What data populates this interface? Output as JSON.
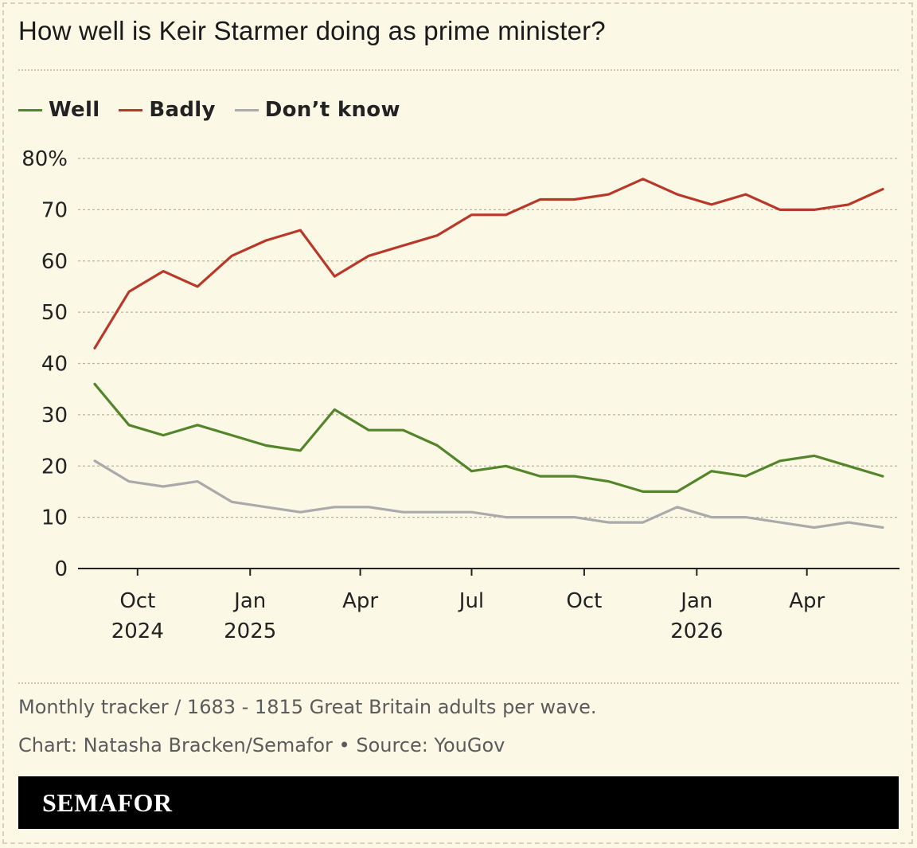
{
  "title": "How well is Keir Starmer doing as prime minister?",
  "legend": [
    {
      "label": "Well",
      "color": "#55852b"
    },
    {
      "label": "Badly",
      "color": "#b8392a"
    },
    {
      "label": "Don’t know",
      "color": "#aaaaaa"
    }
  ],
  "note": "Monthly tracker / 1683 - 1815 Great Britain adults per wave.",
  "credit": "Chart: Natasha Bracken/Semafor • Source: YouGov",
  "brand": "SEMAFOR",
  "chart_data": {
    "type": "line",
    "x_dates": [
      "2024-08-27",
      "2024-09-24",
      "2024-10-22",
      "2024-11-19",
      "2024-12-17",
      "2025-01-14",
      "2025-02-11",
      "2025-03-11",
      "2025-04-08",
      "2025-05-06",
      "2025-06-03",
      "2025-07-01",
      "2025-07-29",
      "2025-08-26",
      "2025-09-23",
      "2025-10-21",
      "2025-11-18",
      "2025-12-16",
      "2026-01-13",
      "2026-02-10",
      "2026-03-10",
      "2026-04-07",
      "2026-05-05",
      "2026-06-02"
    ],
    "series": [
      {
        "name": "Badly",
        "color": "#b8392a",
        "values": [
          43,
          54,
          58,
          55,
          61,
          64,
          66,
          57,
          61,
          63,
          65,
          69,
          69,
          72,
          72,
          73,
          76,
          73,
          71,
          73,
          70,
          70,
          71,
          74
        ]
      },
      {
        "name": "Well",
        "color": "#55852b",
        "values": [
          36,
          28,
          26,
          28,
          26,
          24,
          23,
          31,
          27,
          27,
          24,
          19,
          20,
          18,
          18,
          17,
          15,
          15,
          19,
          18,
          21,
          22,
          20,
          18
        ]
      },
      {
        "name": "Don’t know",
        "color": "#aaaaaa",
        "values": [
          21,
          17,
          16,
          17,
          13,
          12,
          11,
          12,
          12,
          11,
          11,
          11,
          10,
          10,
          10,
          9,
          9,
          12,
          10,
          10,
          9,
          8,
          9,
          8
        ]
      }
    ],
    "y_ticks": [
      "80%",
      "70",
      "60",
      "50",
      "40",
      "30",
      "20",
      "10",
      "0"
    ],
    "y_tick_values": [
      80,
      70,
      60,
      50,
      40,
      30,
      20,
      10,
      0
    ],
    "ylim": [
      0,
      80
    ],
    "x_ticks": [
      {
        "date": "2024-10-01",
        "label": "Oct",
        "year": "2024"
      },
      {
        "date": "2025-01-01",
        "label": "Jan",
        "year": "2025"
      },
      {
        "date": "2025-04-01",
        "label": "Apr",
        "year": ""
      },
      {
        "date": "2025-07-01",
        "label": "Jul",
        "year": ""
      },
      {
        "date": "2025-10-01",
        "label": "Oct",
        "year": ""
      },
      {
        "date": "2026-01-01",
        "label": "Jan",
        "year": "2026"
      },
      {
        "date": "2026-04-01",
        "label": "Apr",
        "year": ""
      }
    ],
    "grid": true,
    "legend_position": "top-left"
  }
}
